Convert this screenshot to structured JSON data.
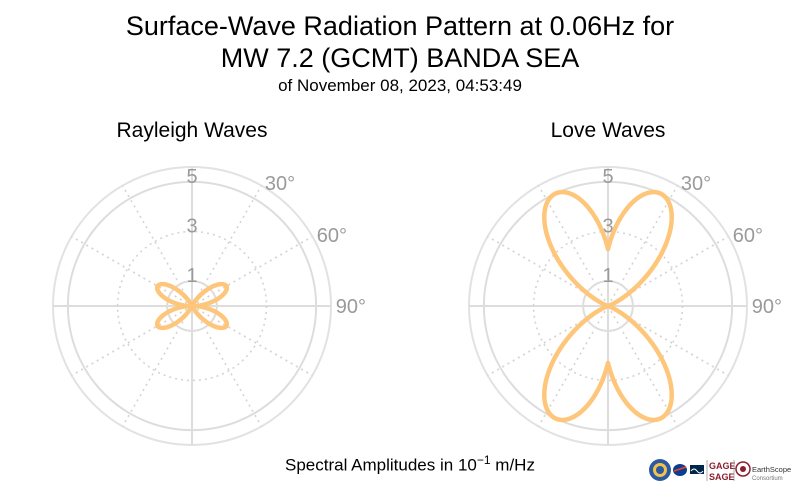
{
  "title_line1": "Surface-Wave Radiation Pattern at 0.06Hz for",
  "title_line2": "MW 7.2 (GCMT) BANDA SEA",
  "title_line3": "of November 08, 2023, 04:53:49",
  "xlabel_prefix": "Spectral Amplitudes in",
  "xlabel_base": "10",
  "xlabel_exp": "−1",
  "xlabel_unit": "m/Hz",
  "logos": {
    "gage": "GAGE",
    "sage": "SAGE",
    "earthscope": "EarthScope",
    "consortium": "Consortium"
  },
  "chart_data": [
    {
      "type": "polar",
      "title": "Rayleigh Waves",
      "r_ticks": [
        1,
        3,
        5
      ],
      "r_max": 5.6,
      "theta_labels": [
        "30°",
        "60°",
        "90°"
      ],
      "theta_zero": "top",
      "theta_direction": "clockwise",
      "color": "#FDC67A",
      "lobes": [
        {
          "peak_angle_deg": 60,
          "peak_r": 1.6,
          "width_deg": 75
        },
        {
          "peak_angle_deg": 120,
          "peak_r": 1.6,
          "width_deg": 75
        },
        {
          "peak_angle_deg": 240,
          "peak_r": 1.6,
          "width_deg": 75
        },
        {
          "peak_angle_deg": 300,
          "peak_r": 1.6,
          "width_deg": 75
        }
      ]
    },
    {
      "type": "polar",
      "title": "Love Waves",
      "r_ticks": [
        1,
        3,
        5
      ],
      "r_max": 5.6,
      "theta_labels": [
        "30°",
        "60°",
        "90°"
      ],
      "theta_zero": "top",
      "theta_direction": "clockwise",
      "color": "#FDC67A",
      "lobes": [
        {
          "peak_angle_deg": 25,
          "peak_r": 5.0,
          "width_deg": 95
        },
        {
          "peak_angle_deg": 155,
          "peak_r": 5.0,
          "width_deg": 95
        },
        {
          "peak_angle_deg": 205,
          "peak_r": 5.0,
          "width_deg": 95
        },
        {
          "peak_angle_deg": 335,
          "peak_r": 5.0,
          "width_deg": 95
        }
      ]
    }
  ]
}
